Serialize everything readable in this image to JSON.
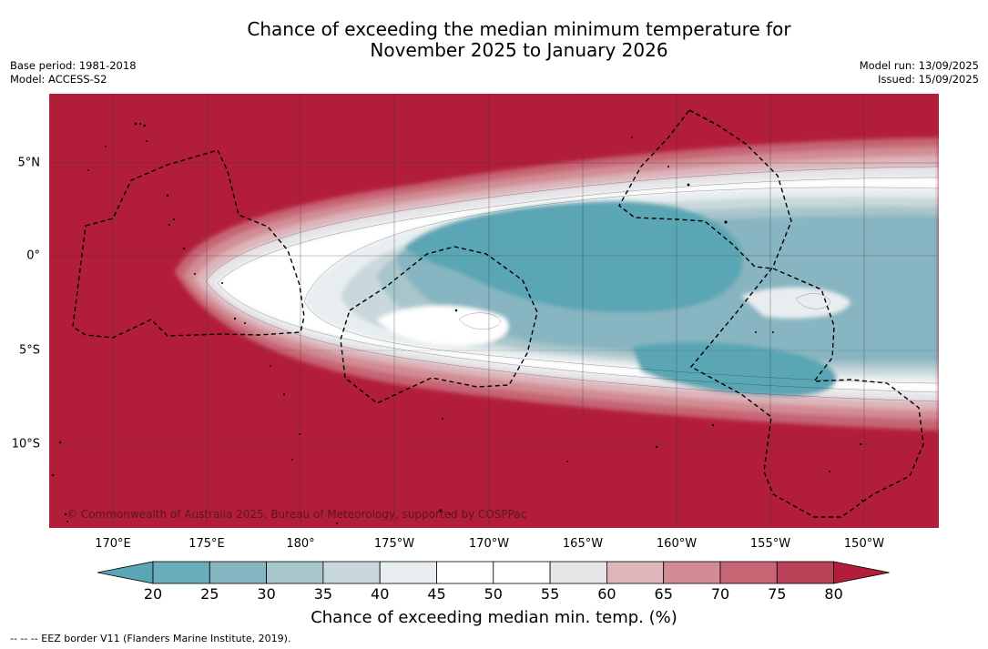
{
  "header": {
    "title_line1": "Chance of exceeding the median minimum temperature for",
    "title_line2": "November 2025 to January 2026",
    "base_period": "Base period: 1981-2018",
    "model": "Model: ACCESS-S2",
    "model_run": "Model run: 13/09/2025",
    "issued": "Issued: 15/09/2025"
  },
  "map": {
    "credit": "© Commonwealth of Australia 2025, Bureau of Meteorology, supported by COSPPac",
    "lon_ticks": [
      "170°E",
      "175°E",
      "180°",
      "175°W",
      "170°W",
      "165°W",
      "160°W",
      "155°W",
      "150°W"
    ],
    "lat_ticks": [
      "5°N",
      "0°",
      "5°S",
      "10°S"
    ],
    "lon_range_deg_east": [
      167.8,
      215.2
    ],
    "lat_range": [
      -14.2,
      8.8
    ],
    "ocean_color": "#b21e3a"
  },
  "colorbar": {
    "label": "Chance of exceeding median min. temp. (%)",
    "ticks": [
      "20",
      "25",
      "30",
      "35",
      "40",
      "45",
      "50",
      "55",
      "60",
      "65",
      "70",
      "75",
      "80"
    ],
    "colors": [
      "#5aa6b4",
      "#6aacb9",
      "#87b5c1",
      "#a7c6cb",
      "#c9d8dc",
      "#e8eef0",
      "#ffffff",
      "#ffffff",
      "#e6e6e8",
      "#ddb5bb",
      "#d28c94",
      "#c66574",
      "#b94258",
      "#b21e3a"
    ]
  },
  "footnote": "--  --  -- EEZ border V11 (Flanders Marine Institute, 2019)."
}
